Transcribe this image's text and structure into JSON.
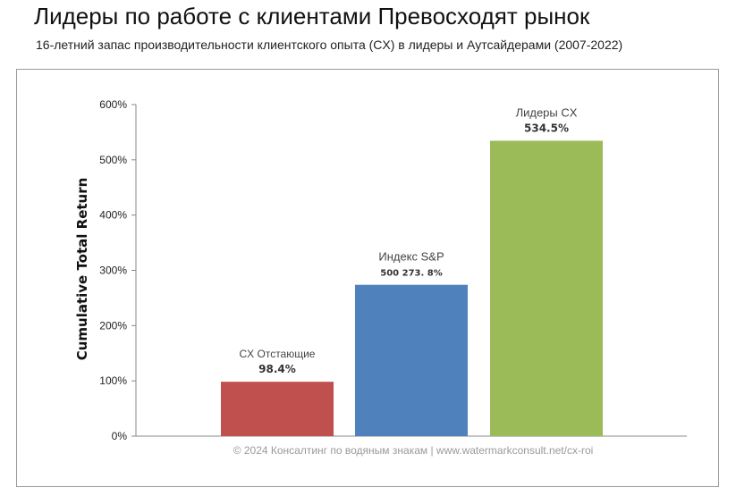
{
  "header": {
    "title": "Лидеры по работе с клиентами Превосходят рынок",
    "subtitle": "16-летний запас производительности клиентского опыта (CX) в лидеры и Аутсайдерами (2007-2022)"
  },
  "watermark": "© 2024 Консалтинг по водяным знакам | www.watermarkconsult.net/cx-roi",
  "chart_data": {
    "type": "bar",
    "categories": [
      "CX Отстающие",
      "Индекс S&P",
      "Лидеры CX"
    ],
    "values": [
      98.4,
      273.8,
      534.5
    ],
    "value_labels": [
      "98.4%",
      "500 273. 8%",
      "534.5%"
    ],
    "colors": [
      "#c0504d",
      "#4f81bd",
      "#9bbb59"
    ],
    "title": "Лидеры по работе с клиентами Превосходят рынок",
    "xlabel": "",
    "ylabel": "Cumulative Total Return",
    "ylim": [
      0,
      600
    ],
    "yticks": [
      "0%",
      "100%",
      "200%",
      "300%",
      "400%",
      "500%",
      "600%"
    ],
    "grid": false,
    "legend": "none"
  }
}
